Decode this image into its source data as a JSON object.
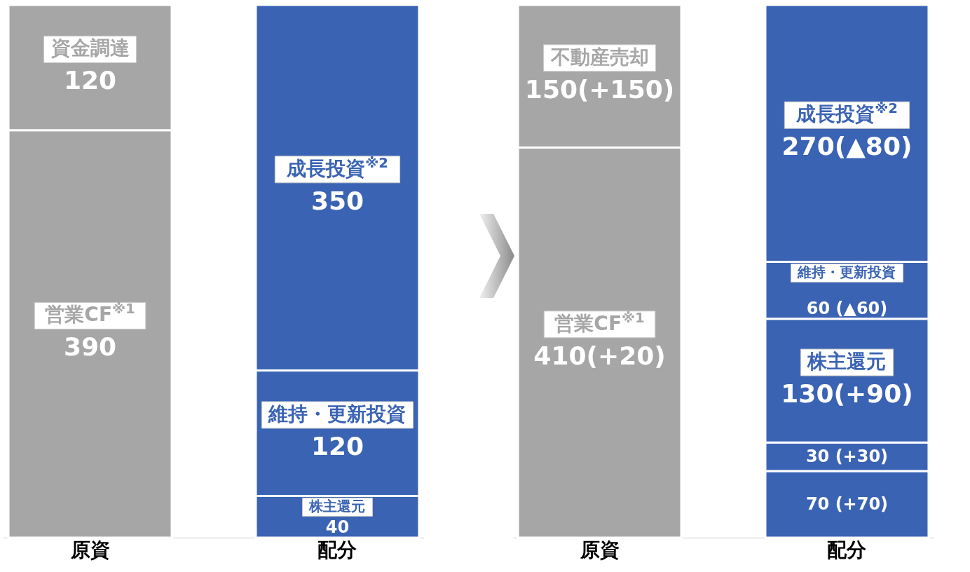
{
  "chart_data": [
    {
      "type": "bar",
      "stacked": true,
      "categories": [
        "原資",
        "配分"
      ],
      "tick_labels": "x",
      "data_labels": true,
      "series": [
        {
          "name": "営業CF$^{※1}$",
          "color": "#a6a6a6",
          "values": [
            390,
            null
          ]
        },
        {
          "name": "資金調達",
          "color": "#a6a6a6",
          "values": [
            120,
            null
          ]
        },
        {
          "name": "株主還元",
          "color": "#3a63b4",
          "values": [
            null,
            40
          ]
        },
        {
          "name": "維持・更新投資",
          "color": "#3a63b4",
          "values": [
            null,
            120
          ]
        },
        {
          "name": "成長投資$^{※2}$",
          "color": "#3a63b4",
          "values": [
            null,
            350
          ]
        }
      ]
    },
    {
      "type": "bar",
      "stacked": true,
      "categories": [
        "原資",
        "配分"
      ],
      "tick_labels": "x",
      "series": [
        {
          "name": "営業CF$^{※1}$",
          "color": "#a6a6a6",
          "values": [
            410,
            null
          ],
          "value_labels": [
            "410(+20)",
            null
          ]
        },
        {
          "name": "不動産売却",
          "color": "#a6a6a6",
          "values": [
            150,
            null
          ],
          "value_labels": [
            "150(+150)",
            null
          ]
        },
        {
          "color": "#3a63b4",
          "values": [
            null,
            70
          ],
          "value_labels": [
            null,
            "70 (+70)"
          ]
        },
        {
          "color": "#3a63b4",
          "values": [
            null,
            30
          ],
          "value_labels": [
            null,
            "30 (+30)"
          ]
        },
        {
          "name": "株主還元",
          "color": "#3a63b4",
          "values": [
            null,
            130
          ],
          "value_labels": [
            null,
            "130(+90)"
          ]
        },
        {
          "name": "維持・更新投資",
          "color": "#3a63b4",
          "values": [
            null,
            60
          ],
          "value_labels": [
            null,
            "60 (▲60)"
          ]
        },
        {
          "name": "成長投資$^{※2}$",
          "color": "#3a63b4",
          "values": [
            null,
            270
          ],
          "value_labels": [
            null,
            "270(▲80)"
          ]
        }
      ]
    }
  ]
}
